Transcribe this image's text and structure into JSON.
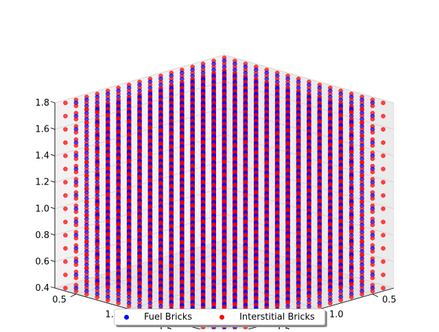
{
  "chart_data": {
    "type": "scatter",
    "projection": "3d",
    "view": "isometric cube lattice",
    "grid": true,
    "legend_position": "bottom-center",
    "axes": {
      "x": {
        "ticks": [
          "0.5",
          "1.0",
          "1.5"
        ],
        "range": [
          0.3,
          1.9
        ]
      },
      "y": {
        "ticks": [
          "0.5",
          "1.0",
          "1.5"
        ],
        "range": [
          0.3,
          1.9
        ]
      },
      "z": {
        "ticks": [
          "0.4",
          "0.6",
          "0.8",
          "1.0",
          "1.2",
          "1.4",
          "1.6",
          "1.8"
        ],
        "range": [
          0.4,
          1.8
        ]
      }
    },
    "series": [
      {
        "name": "Fuel Bricks",
        "color": "#0000ff",
        "lattice": {
          "x": [
            0.4,
            1.8,
            15
          ],
          "y": [
            0.4,
            1.8,
            15
          ],
          "z": [
            0.4,
            1.8,
            15
          ]
        }
      },
      {
        "name": "Interstitial Bricks",
        "color": "#ff0000",
        "lattice": {
          "x": [
            0.35,
            1.85,
            16
          ],
          "y": [
            0.35,
            1.85,
            16
          ],
          "z": [
            0.4,
            1.8,
            15
          ]
        }
      }
    ]
  }
}
